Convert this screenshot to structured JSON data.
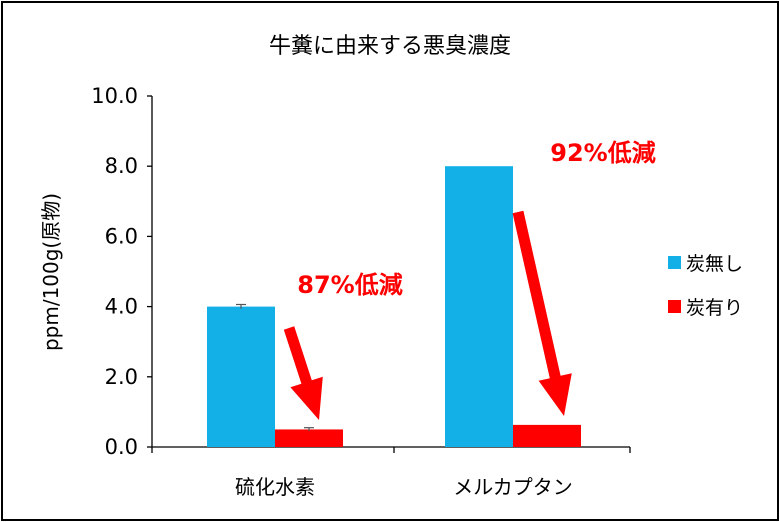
{
  "chart_data": {
    "type": "bar",
    "title": "牛糞に由来する悪臭濃度",
    "ylabel": "ppm/100g(原物)",
    "xlabel": "",
    "ylim": [
      0,
      10
    ],
    "yticks": [
      "0.0",
      "2.0",
      "4.0",
      "6.0",
      "8.0",
      "10.0"
    ],
    "categories": [
      "硫化水素",
      "メルカプタン"
    ],
    "series": [
      {
        "name": "炭無し",
        "color": "#12b0e6",
        "values": [
          4.0,
          8.0
        ],
        "errors": [
          0.06,
          0.0
        ]
      },
      {
        "name": "炭有り",
        "color": "#ff0000",
        "values": [
          0.5,
          0.63
        ],
        "errors": [
          0.05,
          0.0
        ]
      }
    ],
    "legend_position": "right",
    "grid": false,
    "annotations": [
      {
        "text": "87%低減",
        "category": "硫化水素"
      },
      {
        "text": "92%低減",
        "category": "メルカプタン"
      }
    ]
  }
}
